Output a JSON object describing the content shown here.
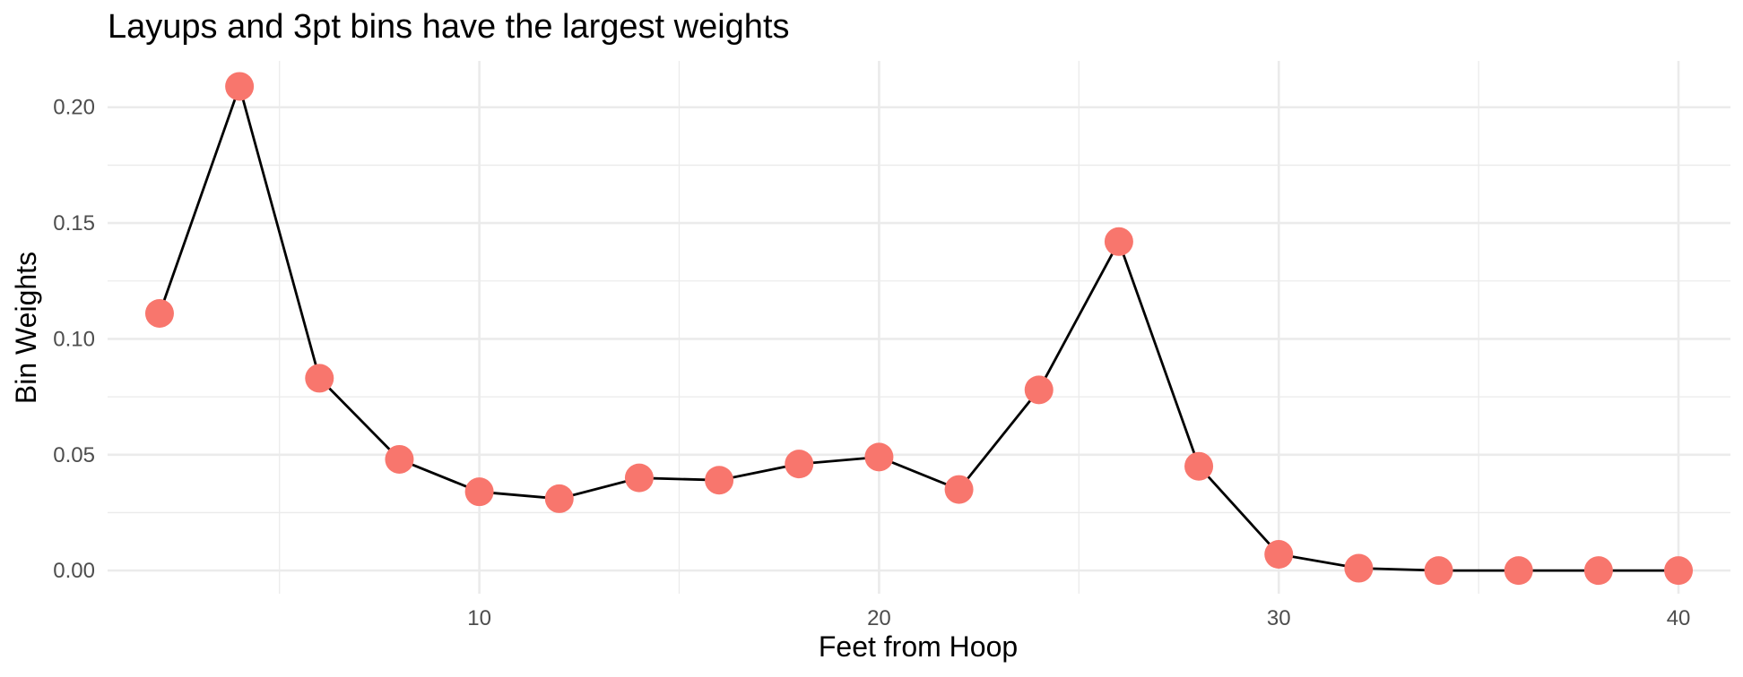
{
  "chart_data": {
    "type": "line",
    "title": "Layups and 3pt bins have the largest weights",
    "xlabel": "Feet from Hoop",
    "ylabel": "Bin Weights",
    "xlim": [
      0.7,
      41.3
    ],
    "ylim": [
      -0.01,
      0.22
    ],
    "x_ticks": [
      10,
      20,
      30,
      40
    ],
    "x_minor_ticks": [
      5,
      15,
      25,
      35
    ],
    "y_ticks": [
      0.0,
      0.05,
      0.1,
      0.15,
      0.2
    ],
    "y_tick_labels": [
      "0.00",
      "0.05",
      "0.10",
      "0.15",
      "0.20"
    ],
    "y_minor_ticks": [
      0.025,
      0.075,
      0.125,
      0.175
    ],
    "grid": true,
    "point_color": "#F8766D",
    "line_color": "#000000",
    "x": [
      2,
      4,
      6,
      8,
      10,
      12,
      14,
      16,
      18,
      20,
      22,
      24,
      26,
      28,
      30,
      32,
      34,
      36,
      38,
      40
    ],
    "values": [
      0.111,
      0.209,
      0.083,
      0.048,
      0.034,
      0.031,
      0.04,
      0.039,
      0.046,
      0.049,
      0.035,
      0.078,
      0.142,
      0.045,
      0.007,
      0.001,
      0.0,
      0.0,
      0.0,
      0.0
    ]
  }
}
